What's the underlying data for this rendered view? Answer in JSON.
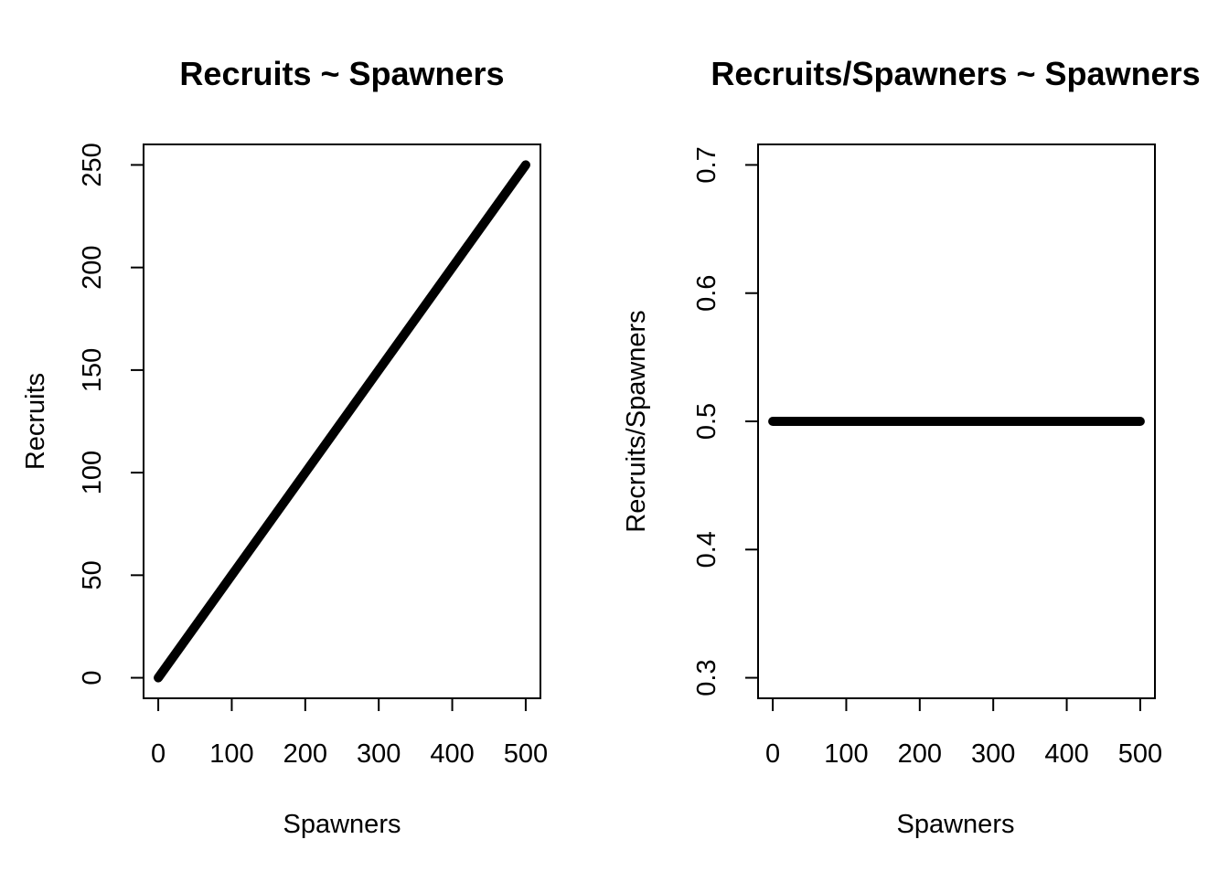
{
  "chart_data": [
    {
      "type": "line",
      "title": "Recruits ~ Spawners",
      "xlabel": "Spawners",
      "ylabel": "Recruits",
      "xlim": [
        -20,
        520
      ],
      "ylim": [
        -10,
        260
      ],
      "xticks": [
        0,
        100,
        200,
        300,
        400,
        500
      ],
      "yticks": [
        0,
        50,
        100,
        150,
        200,
        250
      ],
      "xtick_labels": [
        "0",
        "100",
        "200",
        "300",
        "400",
        "500"
      ],
      "ytick_labels": [
        "0",
        "50",
        "100",
        "150",
        "200",
        "250"
      ],
      "series": [
        {
          "x": [
            0,
            100,
            200,
            300,
            400,
            500
          ],
          "values": [
            0,
            50,
            100,
            150,
            200,
            250
          ],
          "color": "#000000"
        }
      ],
      "grid": false
    },
    {
      "type": "line",
      "title": "Recruits/Spawners ~ Spawners",
      "xlabel": "Spawners",
      "ylabel": "Recruits/Spawners",
      "xlim": [
        -20,
        520
      ],
      "ylim": [
        0.284,
        0.716
      ],
      "xticks": [
        0,
        100,
        200,
        300,
        400,
        500
      ],
      "yticks": [
        0.3,
        0.4,
        0.5,
        0.6,
        0.7
      ],
      "xtick_labels": [
        "0",
        "100",
        "200",
        "300",
        "400",
        "500"
      ],
      "ytick_labels": [
        "0.3",
        "0.4",
        "0.5",
        "0.6",
        "0.7"
      ],
      "series": [
        {
          "x": [
            0,
            100,
            200,
            300,
            400,
            500
          ],
          "values": [
            0.5,
            0.5,
            0.5,
            0.5,
            0.5,
            0.5
          ],
          "color": "#000000"
        }
      ],
      "grid": false
    }
  ]
}
